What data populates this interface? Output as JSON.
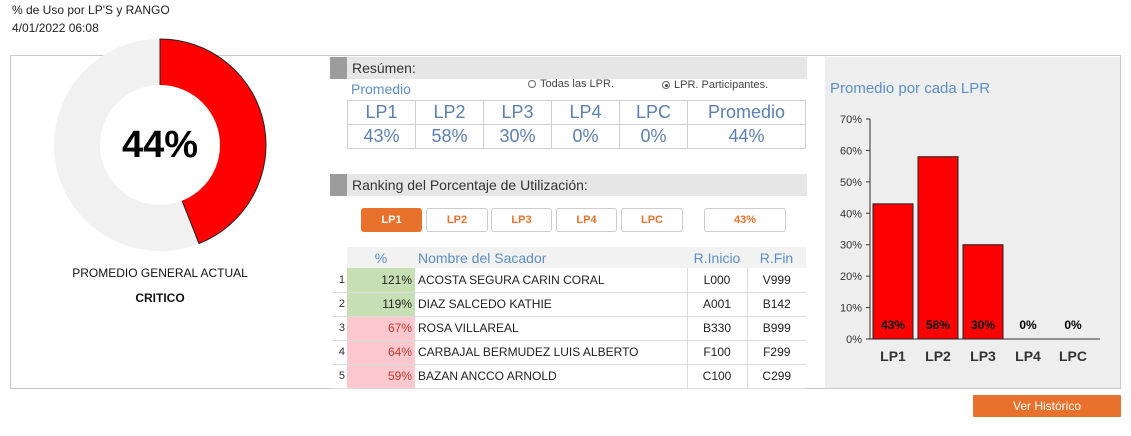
{
  "header": {
    "title": "% de Uso por LP'S y RANGO",
    "datetime": "4/01/2022 06:08"
  },
  "overall": {
    "value": 0.44,
    "percent_label": "44%",
    "label": "PROMEDIO GENERAL ACTUAL",
    "status": "CRITICO",
    "fill_color": "#ff0000",
    "track_color": "#f1f1f1"
  },
  "summary": {
    "section_label": "Resúmen:",
    "subtitle": "Promedio",
    "radio_all": "Todas las LPR.",
    "radio_participants": "LPR. Participantes.",
    "radio_selected": "participants",
    "headers": [
      "LP1",
      "LP2",
      "LP3",
      "LP4",
      "LPC",
      "Promedio"
    ],
    "values": [
      "43%",
      "58%",
      "30%",
      "0%",
      "0%",
      "44%"
    ]
  },
  "ranking": {
    "section_label": "Ranking del Porcentaje de Utilización:",
    "tabs": [
      "LP1",
      "LP2",
      "LP3",
      "LP4",
      "LPC"
    ],
    "active_tab": "LP1",
    "average": "43%",
    "columns": [
      "%",
      "Nombre del Sacador",
      "R.Inicio",
      "R.Fin"
    ],
    "rows": [
      {
        "idx": "1",
        "pct": "121%",
        "name": "ACOSTA SEGURA CARIN CORAL",
        "inicio": "L000",
        "fin": "V999",
        "level": "high"
      },
      {
        "idx": "2",
        "pct": "119%",
        "name": "DIAZ SALCEDO KATHIE",
        "inicio": "A001",
        "fin": "B142",
        "level": "high"
      },
      {
        "idx": "3",
        "pct": "67%",
        "name": "ROSA VILLAREAL",
        "inicio": "B330",
        "fin": "B999",
        "level": "low"
      },
      {
        "idx": "4",
        "pct": "64%",
        "name": "CARBAJAL BERMUDEZ LUIS ALBERTO",
        "inicio": "F100",
        "fin": "F299",
        "level": "low"
      },
      {
        "idx": "5",
        "pct": "59%",
        "name": "BAZAN ANCCO ARNOLD",
        "inicio": "C100",
        "fin": "C299",
        "level": "low"
      }
    ],
    "colors": {
      "high": "#c6e0b4",
      "low": "#ffc7ce",
      "low_text": "#c0392b"
    }
  },
  "chart_data": {
    "type": "bar",
    "title": "Promedio por cada LPR",
    "categories": [
      "LP1",
      "LP2",
      "LP3",
      "LP4",
      "LPC"
    ],
    "values": [
      43,
      58,
      30,
      0,
      0
    ],
    "labels": [
      "43%",
      "58%",
      "30%",
      "0%",
      "0%"
    ],
    "ylim": [
      0,
      70
    ],
    "yticks": [
      "0%",
      "10%",
      "20%",
      "30%",
      "40%",
      "50%",
      "60%",
      "70%"
    ],
    "grid": false,
    "bar_color": "#ff0000"
  },
  "actions": {
    "history_button": "Ver Histórico"
  }
}
